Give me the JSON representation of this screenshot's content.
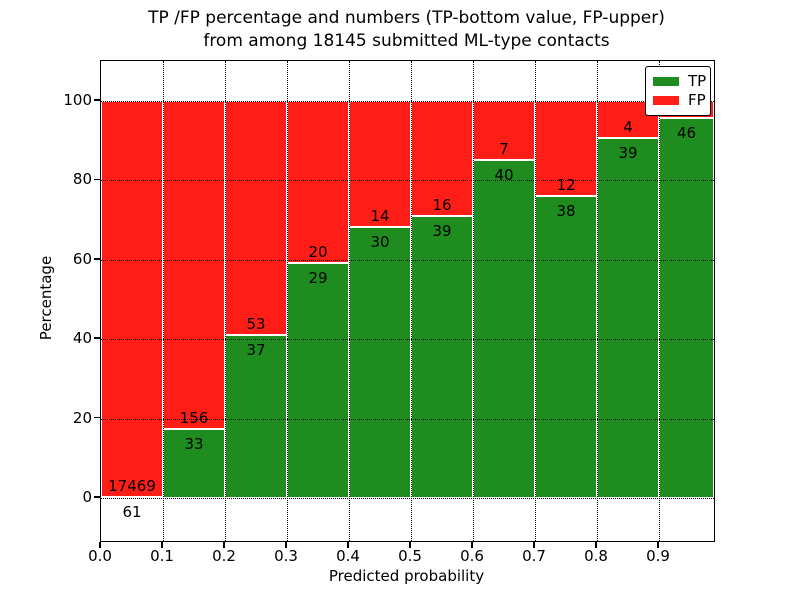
{
  "title": {
    "line1": "TP /FP percentage and numbers (TP-bottom value, FP-upper)",
    "line2": "from among 18145 submitted ML-type contacts"
  },
  "colors": {
    "tp_green": "#1e8c1e",
    "fp_red": "#ff1d17",
    "axis": "#000000",
    "background": "#ffffff"
  },
  "chart_data": {
    "type": "bar",
    "stacked": true,
    "title": "TP /FP percentage and numbers (TP-bottom value, FP-upper) from among 18145 submitted ML-type contacts",
    "xlabel": "Predicted probability",
    "ylabel": "Percentage",
    "total_contacts": 18145,
    "bin_left_edges": [
      0.0,
      0.1,
      0.2,
      0.3,
      0.4,
      0.5,
      0.6,
      0.7,
      0.8,
      0.9
    ],
    "bin_width": 0.1,
    "x_tick_labels": [
      "0.0",
      "0.1",
      "0.2",
      "0.3",
      "0.4",
      "0.5",
      "0.6",
      "0.7",
      "0.8",
      "0.9"
    ],
    "y_ticks": [
      0,
      20,
      40,
      60,
      80,
      100
    ],
    "xlim": [
      0.0,
      0.99
    ],
    "ylim": [
      -11,
      110.5
    ],
    "grid": "dotted, both axes, drawn above bars",
    "series": [
      {
        "name": "TP",
        "role": "bottom",
        "color": "#1e8c1e",
        "counts": [
          61,
          33,
          37,
          29,
          30,
          39,
          40,
          38,
          39,
          46
        ],
        "pct": [
          0.35,
          17.46,
          41.11,
          59.18,
          68.18,
          70.91,
          85.11,
          76.0,
          90.7,
          95.8
        ]
      },
      {
        "name": "FP",
        "role": "top",
        "color": "#ff1d17",
        "counts": [
          17469,
          156,
          53,
          20,
          14,
          16,
          7,
          12,
          4,
          null
        ],
        "pct": [
          99.65,
          82.54,
          58.89,
          40.82,
          31.82,
          29.09,
          14.89,
          24.0,
          9.3,
          4.2
        ]
      }
    ],
    "legend": {
      "position": "upper right",
      "entries": [
        {
          "label": "TP",
          "color": "#1e8c1e"
        },
        {
          "label": "FP",
          "color": "#ff1d17"
        }
      ]
    }
  }
}
